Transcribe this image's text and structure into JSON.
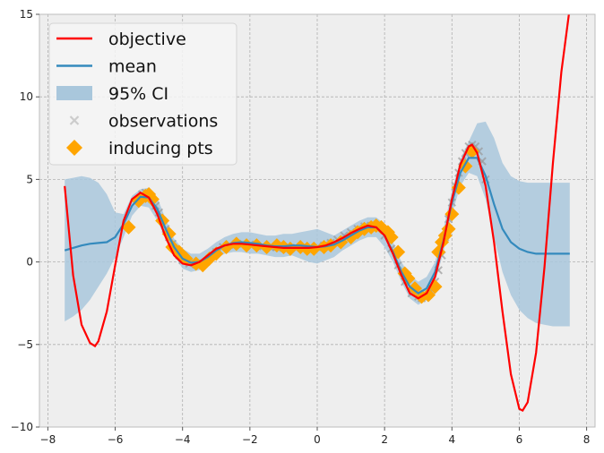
{
  "chart_data": {
    "type": "line",
    "title": "",
    "xlabel": "",
    "ylabel": "",
    "xlim": [
      -8.25,
      8.25
    ],
    "ylim": [
      -10,
      15
    ],
    "xticks": [
      -8,
      -6,
      -4,
      -2,
      0,
      2,
      4,
      6,
      8
    ],
    "yticks": [
      -10,
      -5,
      0,
      5,
      10,
      15
    ],
    "grid": true,
    "legend_position": "top-left",
    "colors": {
      "objective": "#ff0000",
      "mean": "#348abd",
      "ci": "#a9c7dc",
      "observations": "#999999",
      "inducing": "#ffa500",
      "background": "#eeeeee",
      "grid": "#b0b0b0"
    },
    "legend": [
      {
        "label": "objective",
        "kind": "line"
      },
      {
        "label": "mean",
        "kind": "line"
      },
      {
        "label": "95% CI",
        "kind": "band"
      },
      {
        "label": "observations",
        "kind": "x-marker"
      },
      {
        "label": "inducing pts",
        "kind": "diamond"
      }
    ],
    "series": {
      "objective": {
        "x": [
          -7.5,
          -7.25,
          -7.0,
          -6.75,
          -6.6,
          -6.5,
          -6.25,
          -6.0,
          -5.75,
          -5.5,
          -5.25,
          -5.0,
          -4.75,
          -4.5,
          -4.25,
          -4.0,
          -3.75,
          -3.5,
          -3.25,
          -3.0,
          -2.75,
          -2.5,
          -2.25,
          -2.0,
          -1.75,
          -1.5,
          -1.25,
          -1.0,
          -0.75,
          -0.5,
          -0.25,
          0.0,
          0.25,
          0.5,
          0.75,
          1.0,
          1.25,
          1.5,
          1.75,
          2.0,
          2.25,
          2.5,
          2.75,
          3.0,
          3.25,
          3.5,
          3.75,
          4.0,
          4.25,
          4.5,
          4.6,
          4.75,
          5.0,
          5.25,
          5.5,
          5.75,
          6.0,
          6.1,
          6.25,
          6.5,
          6.75,
          7.0,
          7.25,
          7.5
        ],
        "y": [
          4.6,
          -0.8,
          -3.8,
          -4.9,
          -5.1,
          -4.8,
          -3.0,
          -0.2,
          2.5,
          3.8,
          4.2,
          3.9,
          2.9,
          1.5,
          0.4,
          -0.1,
          -0.2,
          0.0,
          0.4,
          0.8,
          1.0,
          1.1,
          1.1,
          1.05,
          1.0,
          0.95,
          0.9,
          0.85,
          0.85,
          0.85,
          0.85,
          0.9,
          1.0,
          1.2,
          1.45,
          1.75,
          2.0,
          2.2,
          2.1,
          1.6,
          0.5,
          -0.8,
          -1.9,
          -2.2,
          -1.9,
          -0.9,
          1.2,
          3.8,
          5.9,
          7.0,
          7.1,
          6.6,
          4.6,
          1.2,
          -3.0,
          -6.8,
          -8.9,
          -9.0,
          -8.5,
          -5.5,
          -0.3,
          6.0,
          11.5,
          15.4
        ]
      },
      "mean": {
        "x": [
          -7.5,
          -7.25,
          -7.0,
          -6.75,
          -6.5,
          -6.25,
          -6.0,
          -5.75,
          -5.5,
          -5.25,
          -5.0,
          -4.75,
          -4.5,
          -4.25,
          -4.0,
          -3.75,
          -3.5,
          -3.25,
          -3.0,
          -2.75,
          -2.5,
          -2.25,
          -2.0,
          -1.75,
          -1.5,
          -1.25,
          -1.0,
          -0.75,
          -0.5,
          -0.25,
          0.0,
          0.25,
          0.5,
          0.75,
          1.0,
          1.25,
          1.5,
          1.75,
          2.0,
          2.25,
          2.5,
          2.75,
          3.0,
          3.25,
          3.5,
          3.75,
          4.0,
          4.25,
          4.5,
          4.75,
          5.0,
          5.25,
          5.5,
          5.75,
          6.0,
          6.25,
          6.5,
          6.75,
          7.0,
          7.25,
          7.5
        ],
        "y": [
          0.7,
          0.85,
          1.0,
          1.1,
          1.15,
          1.2,
          1.5,
          2.3,
          3.4,
          3.95,
          3.9,
          3.2,
          2.0,
          0.9,
          0.2,
          -0.05,
          0.0,
          0.3,
          0.7,
          1.0,
          1.15,
          1.2,
          1.15,
          1.1,
          1.0,
          0.95,
          0.95,
          1.0,
          1.0,
          0.95,
          0.9,
          0.95,
          1.05,
          1.3,
          1.6,
          1.9,
          2.1,
          2.1,
          1.6,
          0.6,
          -0.6,
          -1.5,
          -1.9,
          -1.6,
          -0.6,
          1.3,
          3.6,
          5.4,
          6.3,
          6.3,
          5.2,
          3.5,
          2.0,
          1.2,
          0.8,
          0.6,
          0.5,
          0.5,
          0.5,
          0.5,
          0.5
        ]
      },
      "ci": {
        "x": [
          -7.5,
          -7.25,
          -7.0,
          -6.75,
          -6.5,
          -6.25,
          -6.0,
          -5.75,
          -5.5,
          -5.25,
          -5.0,
          -4.75,
          -4.5,
          -4.25,
          -4.0,
          -3.75,
          -3.5,
          -3.25,
          -3.0,
          -2.75,
          -2.5,
          -2.25,
          -2.0,
          -1.75,
          -1.5,
          -1.25,
          -1.0,
          -0.75,
          -0.5,
          -0.25,
          0.0,
          0.25,
          0.5,
          0.75,
          1.0,
          1.25,
          1.5,
          1.75,
          2.0,
          2.25,
          2.5,
          2.75,
          3.0,
          3.25,
          3.5,
          3.75,
          4.0,
          4.25,
          4.5,
          4.75,
          5.0,
          5.25,
          5.5,
          5.75,
          6.0,
          6.25,
          6.5,
          6.75,
          7.0,
          7.25,
          7.5
        ],
        "lower": [
          -3.6,
          -3.3,
          -2.9,
          -2.3,
          -1.5,
          -0.7,
          0.3,
          1.5,
          2.8,
          3.4,
          3.3,
          2.5,
          1.4,
          0.4,
          -0.4,
          -0.6,
          -0.5,
          -0.2,
          0.2,
          0.5,
          0.6,
          0.6,
          0.5,
          0.5,
          0.4,
          0.3,
          0.3,
          0.4,
          0.2,
          0.0,
          -0.1,
          0.1,
          0.3,
          0.7,
          1.0,
          1.3,
          1.5,
          1.5,
          0.9,
          0.0,
          -1.2,
          -2.2,
          -2.6,
          -2.3,
          -1.2,
          0.6,
          2.9,
          4.6,
          5.4,
          5.2,
          3.8,
          1.5,
          -0.6,
          -2.0,
          -2.9,
          -3.4,
          -3.7,
          -3.8,
          -3.9,
          -3.9,
          -3.9
        ],
        "upper": [
          5.0,
          5.1,
          5.2,
          5.1,
          4.8,
          4.1,
          3.0,
          2.9,
          4.0,
          4.4,
          4.5,
          3.9,
          2.6,
          1.4,
          0.8,
          0.5,
          0.5,
          0.8,
          1.2,
          1.5,
          1.7,
          1.8,
          1.8,
          1.7,
          1.6,
          1.6,
          1.7,
          1.7,
          1.8,
          1.9,
          2.0,
          1.8,
          1.6,
          1.9,
          2.2,
          2.5,
          2.7,
          2.7,
          2.3,
          1.2,
          0.0,
          -0.8,
          -1.2,
          -0.9,
          0.0,
          2.0,
          4.3,
          6.2,
          7.3,
          8.4,
          8.5,
          7.5,
          6.0,
          5.2,
          4.9,
          4.8,
          4.8,
          4.8,
          4.8,
          4.8,
          4.8
        ]
      },
      "observations": {
        "x": [
          -5.2,
          -5.1,
          -5.0,
          -4.9,
          -4.8,
          -4.7,
          -4.6,
          -4.5,
          -4.4,
          -4.3,
          -4.2,
          -4.1,
          -4.0,
          -3.8,
          -3.6,
          -3.4,
          -3.2,
          -3.0,
          -2.8,
          -2.6,
          -2.4,
          -2.2,
          -2.0,
          -1.8,
          -1.6,
          -1.4,
          -1.2,
          -1.0,
          -0.8,
          -0.6,
          -0.4,
          -0.2,
          0.0,
          0.2,
          0.4,
          0.6,
          0.8,
          1.0,
          1.2,
          1.4,
          1.6,
          1.8,
          2.0,
          2.2,
          2.4,
          2.6,
          2.8,
          3.0,
          3.1,
          3.2,
          3.3,
          3.4,
          3.5,
          3.6,
          3.7,
          3.8,
          3.9,
          4.0,
          4.1,
          4.2,
          4.3,
          4.4,
          4.5,
          4.6,
          4.7,
          4.8,
          4.9,
          5.0
        ],
        "y": [
          4.1,
          4.2,
          4.0,
          3.8,
          3.4,
          3.0,
          2.5,
          2.0,
          1.5,
          1.1,
          0.7,
          0.4,
          0.1,
          -0.1,
          -0.15,
          -0.1,
          0.2,
          0.6,
          0.9,
          1.05,
          1.1,
          1.1,
          1.05,
          1.0,
          0.95,
          0.9,
          0.9,
          0.85,
          0.85,
          0.85,
          0.85,
          0.85,
          0.9,
          1.0,
          1.15,
          1.35,
          1.6,
          1.8,
          2.0,
          2.15,
          2.2,
          2.15,
          1.6,
          0.8,
          -0.2,
          -1.2,
          -1.9,
          -2.1,
          -2.2,
          -2.15,
          -2.0,
          -1.7,
          -1.2,
          -0.5,
          0.4,
          1.5,
          2.6,
          3.6,
          4.6,
          5.4,
          6.1,
          6.6,
          7.0,
          7.1,
          7.0,
          6.7,
          6.1,
          5.0
        ]
      },
      "inducing": {
        "x": [
          -5.6,
          -5.3,
          -5.1,
          -5.0,
          -4.9,
          -4.6,
          -4.4,
          -4.3,
          -4.1,
          -3.9,
          -3.6,
          -3.4,
          -3.2,
          -3.0,
          -2.7,
          -2.4,
          -2.1,
          -1.8,
          -1.5,
          -1.2,
          -1.0,
          -0.8,
          -0.5,
          -0.3,
          -0.1,
          0.2,
          0.4,
          0.7,
          1.0,
          1.2,
          1.4,
          1.6,
          1.75,
          1.9,
          2.1,
          2.2,
          2.4,
          2.6,
          2.7,
          2.9,
          3.1,
          3.3,
          3.5,
          3.6,
          3.7,
          3.8,
          3.9,
          4.0,
          4.2,
          4.4,
          4.6
        ],
        "y": [
          2.1,
          3.7,
          4.0,
          4.1,
          3.8,
          2.5,
          1.7,
          0.9,
          0.6,
          0.2,
          -0.1,
          -0.2,
          0.2,
          0.5,
          0.9,
          1.1,
          1.0,
          1.0,
          0.9,
          1.0,
          0.9,
          0.8,
          0.9,
          0.8,
          0.8,
          0.9,
          1.0,
          1.2,
          1.5,
          1.8,
          2.0,
          2.1,
          2.2,
          2.1,
          1.8,
          1.5,
          0.6,
          -0.7,
          -1.0,
          -1.6,
          -2.1,
          -2.0,
          -1.5,
          0.6,
          1.2,
          1.6,
          2.0,
          2.9,
          4.5,
          5.8,
          6.7
        ]
      }
    }
  }
}
